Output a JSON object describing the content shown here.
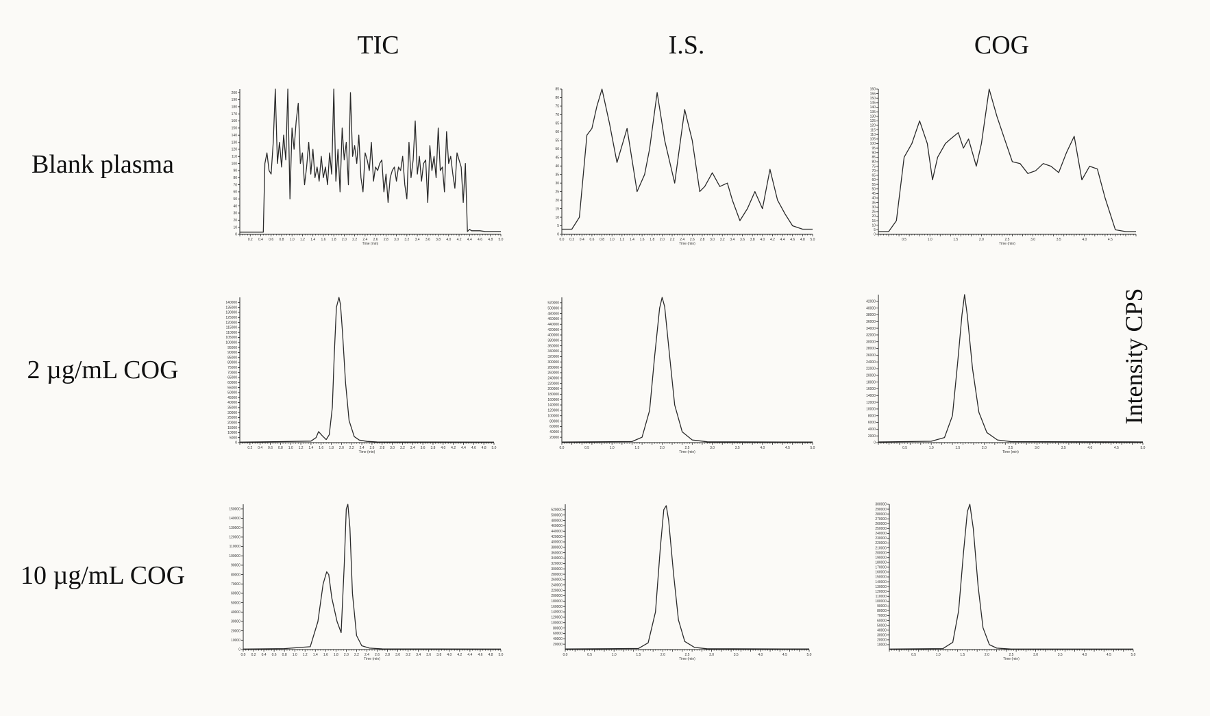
{
  "column_titles": [
    "TIC",
    "I.S.",
    "COG"
  ],
  "row_titles": [
    "Blank plasma",
    "2 µg/mL COG",
    "10 µg/mL COG"
  ],
  "side_label": "Intensity CPS",
  "chart_data": [
    {
      "type": "line",
      "row": "Blank plasma",
      "col": "TIC",
      "xlabel": "Time (min)",
      "xlim": [
        0,
        5.0
      ],
      "xticks": [
        "0.2",
        "0.4",
        "0.6",
        "0.8",
        "1.0",
        "1.2",
        "1.4",
        "1.6",
        "1.8",
        "2.0",
        "2.2",
        "2.4",
        "2.6",
        "2.8",
        "3.0",
        "3.2",
        "3.4",
        "3.6",
        "3.8",
        "4.0",
        "4.2",
        "4.4",
        "4.6",
        "4.8",
        "5.0"
      ],
      "ylim": [
        0,
        205
      ],
      "yticks": [
        "0",
        "10",
        "20",
        "30",
        "40",
        "50",
        "60",
        "70",
        "80",
        "90",
        "100",
        "110",
        "120",
        "130",
        "140",
        "150",
        "160",
        "170",
        "180",
        "190",
        "200"
      ],
      "x": [
        0,
        0.4,
        0.45,
        0.48,
        0.52,
        0.56,
        0.6,
        0.64,
        0.68,
        0.72,
        0.76,
        0.8,
        0.84,
        0.88,
        0.92,
        0.96,
        1.0,
        1.04,
        1.08,
        1.12,
        1.16,
        1.2,
        1.24,
        1.28,
        1.32,
        1.36,
        1.4,
        1.44,
        1.48,
        1.52,
        1.56,
        1.6,
        1.64,
        1.68,
        1.72,
        1.76,
        1.8,
        1.84,
        1.88,
        1.92,
        1.96,
        2.0,
        2.04,
        2.08,
        2.12,
        2.16,
        2.2,
        2.24,
        2.28,
        2.32,
        2.36,
        2.4,
        2.44,
        2.48,
        2.52,
        2.56,
        2.6,
        2.64,
        2.68,
        2.72,
        2.76,
        2.8,
        2.84,
        2.88,
        2.92,
        2.96,
        3.0,
        3.04,
        3.08,
        3.12,
        3.16,
        3.2,
        3.24,
        3.28,
        3.32,
        3.36,
        3.4,
        3.44,
        3.48,
        3.52,
        3.56,
        3.6,
        3.64,
        3.68,
        3.72,
        3.76,
        3.8,
        3.84,
        3.88,
        3.92,
        3.96,
        4.0,
        4.04,
        4.08,
        4.12,
        4.16,
        4.2,
        4.24,
        4.28,
        4.32,
        4.36,
        4.4,
        4.44,
        4.48,
        4.52,
        4.56,
        4.6,
        4.7,
        5.0
      ],
      "y": [
        3,
        3,
        3,
        100,
        115,
        90,
        85,
        130,
        205,
        100,
        130,
        95,
        140,
        105,
        205,
        50,
        150,
        120,
        160,
        185,
        100,
        115,
        70,
        95,
        130,
        85,
        120,
        80,
        95,
        75,
        110,
        80,
        95,
        70,
        115,
        85,
        205,
        75,
        120,
        60,
        150,
        105,
        130,
        70,
        200,
        110,
        125,
        100,
        140,
        80,
        60,
        115,
        105,
        90,
        130,
        75,
        95,
        90,
        100,
        105,
        60,
        85,
        45,
        80,
        90,
        95,
        75,
        95,
        90,
        110,
        70,
        50,
        130,
        80,
        105,
        160,
        85,
        110,
        75,
        100,
        105,
        45,
        125,
        90,
        110,
        80,
        150,
        90,
        95,
        60,
        145,
        100,
        110,
        85,
        65,
        115,
        105,
        95,
        45,
        100,
        4,
        7,
        5,
        5,
        5,
        5,
        5,
        4,
        4
      ]
    },
    {
      "type": "line",
      "row": "Blank plasma",
      "col": "I.S.",
      "xlabel": "Time (min)",
      "xlim": [
        0,
        5.0
      ],
      "xticks": [
        "0.0",
        "0.2",
        "0.4",
        "0.6",
        "0.8",
        "1.0",
        "1.2",
        "1.4",
        "1.6",
        "1.8",
        "2.0",
        "2.2",
        "2.4",
        "2.6",
        "2.8",
        "3.0",
        "3.2",
        "3.4",
        "3.6",
        "3.8",
        "4.0",
        "4.2",
        "4.4",
        "4.6",
        "4.8",
        "5.0"
      ],
      "ylim": [
        0,
        85
      ],
      "yticks": [
        "0",
        "5",
        "10",
        "15",
        "20",
        "25",
        "30",
        "35",
        "40",
        "45",
        "50",
        "55",
        "60",
        "65",
        "70",
        "75",
        "80",
        "85"
      ],
      "x": [
        0,
        0.2,
        0.35,
        0.5,
        0.6,
        0.7,
        0.8,
        0.95,
        1.1,
        1.3,
        1.5,
        1.65,
        1.75,
        1.9,
        2.05,
        2.25,
        2.45,
        2.6,
        2.75,
        2.85,
        3.0,
        3.15,
        3.3,
        3.4,
        3.55,
        3.7,
        3.85,
        4.0,
        4.15,
        4.3,
        4.45,
        4.6,
        4.8,
        5.0
      ],
      "y": [
        3,
        3,
        10,
        58,
        62,
        75,
        85,
        65,
        42,
        62,
        25,
        35,
        50,
        83,
        55,
        30,
        73,
        55,
        25,
        28,
        36,
        28,
        30,
        20,
        8,
        15,
        25,
        15,
        38,
        20,
        12,
        5,
        3,
        3
      ]
    },
    {
      "type": "line",
      "row": "Blank plasma",
      "col": "COG",
      "xlabel": "Time (min)",
      "xlim": [
        0,
        5.0
      ],
      "xticks": [
        "0.5",
        "1.0",
        "1.5",
        "2.0",
        "2.5",
        "3.0",
        "3.5",
        "4.0",
        "4.5"
      ],
      "ylim": [
        0,
        160
      ],
      "yticks": [
        "0",
        "5",
        "10",
        "15",
        "20",
        "25",
        "30",
        "35",
        "40",
        "45",
        "50",
        "55",
        "60",
        "65",
        "70",
        "75",
        "80",
        "85",
        "90",
        "95",
        "100",
        "105",
        "110",
        "115",
        "120",
        "125",
        "130",
        "135",
        "140",
        "145",
        "150",
        "155",
        "160"
      ],
      "x": [
        0,
        0.2,
        0.35,
        0.5,
        0.65,
        0.8,
        0.95,
        1.05,
        1.15,
        1.3,
        1.4,
        1.55,
        1.65,
        1.75,
        1.9,
        2.0,
        2.15,
        2.3,
        2.45,
        2.6,
        2.75,
        2.9,
        3.05,
        3.2,
        3.35,
        3.5,
        3.65,
        3.8,
        3.95,
        4.1,
        4.25,
        4.4,
        4.6,
        4.8,
        5.0
      ],
      "y": [
        3,
        3,
        15,
        85,
        100,
        125,
        100,
        60,
        85,
        100,
        105,
        112,
        95,
        105,
        75,
        100,
        160,
        130,
        105,
        80,
        78,
        67,
        70,
        78,
        75,
        68,
        90,
        108,
        60,
        75,
        72,
        40,
        5,
        3,
        3
      ]
    },
    {
      "type": "line",
      "row": "2 µg/mL COG",
      "col": "TIC",
      "xlabel": "Time (min)",
      "xlim": [
        0,
        5.0
      ],
      "xticks": [
        "0.2",
        "0.4",
        "0.6",
        "0.8",
        "1.0",
        "1.2",
        "1.4",
        "1.6",
        "1.8",
        "2.0",
        "2.2",
        "2.4",
        "2.6",
        "2.8",
        "3.0",
        "3.2",
        "3.4",
        "3.6",
        "3.8",
        "4.0",
        "4.2",
        "4.4",
        "4.6",
        "4.8",
        "5.0"
      ],
      "ylim": [
        0,
        145000
      ],
      "yticks": [
        "0",
        "5000",
        "10000",
        "15000",
        "20000",
        "25000",
        "30000",
        "35000",
        "40000",
        "45000",
        "50000",
        "55000",
        "60000",
        "65000",
        "70000",
        "75000",
        "80000",
        "85000",
        "90000",
        "95000",
        "100000",
        "105000",
        "110000",
        "115000",
        "120000",
        "125000",
        "130000",
        "135000",
        "140000"
      ],
      "x": [
        0,
        0.8,
        1.4,
        1.5,
        1.55,
        1.62,
        1.7,
        1.76,
        1.82,
        1.86,
        1.9,
        1.95,
        1.98,
        2.02,
        2.08,
        2.15,
        2.25,
        2.35,
        2.5,
        2.7,
        5.0
      ],
      "y": [
        500,
        1000,
        1500,
        5000,
        11000,
        7000,
        3000,
        8000,
        35000,
        90000,
        135000,
        145000,
        138000,
        110000,
        60000,
        22000,
        6000,
        2500,
        1200,
        700,
        500
      ]
    },
    {
      "type": "line",
      "row": "2 µg/mL COG",
      "col": "I.S.",
      "xlabel": "Time (min)",
      "xlim": [
        0,
        5.0
      ],
      "xticks": [
        "0.0",
        "0.5",
        "1.0",
        "1.5",
        "2.0",
        "2.5",
        "3.0",
        "3.5",
        "4.0",
        "4.5",
        "5.0"
      ],
      "ylim": [
        0,
        540000
      ],
      "yticks": [
        "20000",
        "40000",
        "60000",
        "80000",
        "100000",
        "120000",
        "140000",
        "160000",
        "180000",
        "200000",
        "220000",
        "240000",
        "260000",
        "280000",
        "300000",
        "320000",
        "340000",
        "360000",
        "380000",
        "400000",
        "420000",
        "440000",
        "460000",
        "480000",
        "500000",
        "520000"
      ],
      "x": [
        0,
        1.4,
        1.6,
        1.75,
        1.85,
        1.95,
        2.0,
        2.05,
        2.15,
        2.25,
        2.4,
        2.6,
        2.9,
        5.0
      ],
      "y": [
        2000,
        4000,
        20000,
        120000,
        320000,
        500000,
        540000,
        505000,
        320000,
        140000,
        40000,
        10000,
        3000,
        2000
      ]
    },
    {
      "type": "line",
      "row": "2 µg/mL COG",
      "col": "COG",
      "xlabel": "Time (min)",
      "xlim": [
        0,
        5.0
      ],
      "xticks": [
        "0.5",
        "1.0",
        "1.5",
        "2.0",
        "2.5",
        "3.0",
        "3.5",
        "4.0",
        "4.5",
        "5.0"
      ],
      "ylim": [
        0,
        44000
      ],
      "yticks": [
        "0",
        "2000",
        "4000",
        "6000",
        "8000",
        "10000",
        "12000",
        "14000",
        "16000",
        "18000",
        "20000",
        "22000",
        "24000",
        "26000",
        "28000",
        "30000",
        "32000",
        "34000",
        "36000",
        "38000",
        "40000",
        "42000"
      ],
      "x": [
        0,
        1.0,
        1.25,
        1.4,
        1.5,
        1.58,
        1.63,
        1.68,
        1.78,
        1.9,
        2.05,
        2.25,
        2.5,
        5.0
      ],
      "y": [
        200,
        400,
        1500,
        8000,
        24000,
        38000,
        44000,
        38000,
        22000,
        9000,
        3000,
        800,
        300,
        200
      ]
    },
    {
      "type": "line",
      "row": "10 µg/mL COG",
      "col": "TIC",
      "xlabel": "Time (min)",
      "xlim": [
        0,
        5.0
      ],
      "xticks": [
        "0.0",
        "0.2",
        "0.4",
        "0.6",
        "0.8",
        "1.0",
        "1.2",
        "1.4",
        "1.6",
        "1.8",
        "2.0",
        "2.2",
        "2.4",
        "2.6",
        "2.8",
        "3.0",
        "3.2",
        "3.4",
        "3.6",
        "3.8",
        "4.0",
        "4.2",
        "4.4",
        "4.6",
        "4.8",
        "5.0"
      ],
      "ylim": [
        0,
        155000
      ],
      "yticks": [
        "0",
        "10000",
        "20000",
        "30000",
        "40000",
        "50000",
        "60000",
        "70000",
        "80000",
        "90000",
        "100000",
        "110000",
        "120000",
        "130000",
        "140000",
        "150000"
      ],
      "x": [
        0,
        0.8,
        1.3,
        1.45,
        1.55,
        1.62,
        1.66,
        1.72,
        1.82,
        1.9,
        1.96,
        2.0,
        2.03,
        2.07,
        2.12,
        2.2,
        2.3,
        2.45,
        2.7,
        5.0
      ],
      "y": [
        500,
        1000,
        3000,
        30000,
        70000,
        83000,
        80000,
        55000,
        30000,
        18000,
        90000,
        150000,
        155000,
        130000,
        60000,
        15000,
        4000,
        1500,
        700,
        500
      ]
    },
    {
      "type": "line",
      "row": "10 µg/mL COG",
      "col": "I.S.",
      "xlabel": "Time (min)",
      "xlim": [
        0,
        5.0
      ],
      "xticks": [
        "0.0",
        "0.5",
        "1.0",
        "1.5",
        "2.0",
        "2.5",
        "3.0",
        "3.5",
        "4.0",
        "4.5",
        "5.0"
      ],
      "ylim": [
        0,
        540000
      ],
      "yticks": [
        "20000",
        "40000",
        "60000",
        "80000",
        "100000",
        "120000",
        "140000",
        "160000",
        "180000",
        "200000",
        "220000",
        "240000",
        "260000",
        "280000",
        "300000",
        "320000",
        "340000",
        "360000",
        "380000",
        "400000",
        "420000",
        "440000",
        "460000",
        "480000",
        "500000",
        "520000"
      ],
      "x": [
        0,
        1.5,
        1.7,
        1.85,
        1.95,
        2.02,
        2.07,
        2.12,
        2.22,
        2.32,
        2.45,
        2.65,
        2.9,
        5.0
      ],
      "y": [
        2000,
        4000,
        25000,
        140000,
        380000,
        520000,
        535000,
        480000,
        280000,
        110000,
        30000,
        8000,
        3000,
        2000
      ]
    },
    {
      "type": "line",
      "row": "10 µg/mL COG",
      "col": "COG",
      "xlabel": "Time (min)",
      "xlim": [
        0,
        5.0
      ],
      "xticks": [
        "0.5",
        "1.0",
        "1.5",
        "2.0",
        "2.5",
        "3.0",
        "3.5",
        "4.0",
        "4.5",
        "5.0"
      ],
      "ylim": [
        0,
        300000
      ],
      "yticks": [
        "10000",
        "20000",
        "30000",
        "40000",
        "50000",
        "60000",
        "70000",
        "80000",
        "90000",
        "100000",
        "110000",
        "120000",
        "130000",
        "140000",
        "150000",
        "160000",
        "170000",
        "180000",
        "190000",
        "200000",
        "210000",
        "220000",
        "230000",
        "240000",
        "250000",
        "260000",
        "270000",
        "280000",
        "290000",
        "300000"
      ],
      "x": [
        0,
        1.1,
        1.3,
        1.42,
        1.52,
        1.6,
        1.65,
        1.72,
        1.82,
        1.92,
        2.05,
        2.2,
        2.5,
        5.0
      ],
      "y": [
        1000,
        2000,
        15000,
        80000,
        200000,
        285000,
        300000,
        250000,
        130000,
        45000,
        10000,
        3000,
        1000,
        1000
      ]
    }
  ]
}
